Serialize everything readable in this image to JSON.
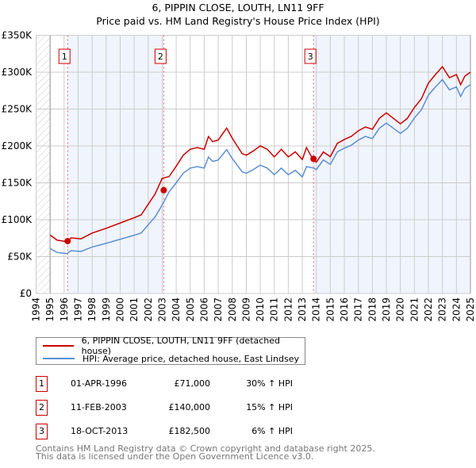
{
  "chart_data": {
    "type": "line",
    "title": "6, PIPPIN CLOSE, LOUTH, LN11 9FF",
    "subtitle": "Price paid vs. HM Land Registry's House Price Index (HPI)",
    "xlim": [
      1994,
      2025
    ],
    "ylim": [
      0,
      350000
    ],
    "y_ticks": [
      0,
      50000,
      100000,
      150000,
      200000,
      250000,
      300000,
      350000
    ],
    "y_tick_labels": [
      "£0",
      "£50K",
      "£100K",
      "£150K",
      "£200K",
      "£250K",
      "£300K",
      "£350K"
    ],
    "x_tick_labels": [
      "1994",
      "1995",
      "1996",
      "1997",
      "1998",
      "1999",
      "2000",
      "2001",
      "2002",
      "2003",
      "2004",
      "2005",
      "2006",
      "2007",
      "2008",
      "2009",
      "2010",
      "2011",
      "2012",
      "2013",
      "2014",
      "2015",
      "2016",
      "2017",
      "2018",
      "2019",
      "2020",
      "2021",
      "2022",
      "2023",
      "2024",
      "2025"
    ],
    "grid": true,
    "hpi_series": {
      "name": "HPI: Average price, detached house, East Lindsey",
      "color": "#5b8fd4",
      "points": [
        [
          1995,
          61000
        ],
        [
          1995.5,
          55600
        ],
        [
          1996.2,
          54000
        ],
        [
          1996.5,
          58000
        ],
        [
          1997.2,
          57000
        ],
        [
          1998,
          63000
        ],
        [
          1999,
          68000
        ],
        [
          2000,
          73500
        ],
        [
          2001,
          79000
        ],
        [
          2001.5,
          82000
        ],
        [
          2002,
          93000
        ],
        [
          2002.5,
          104000
        ],
        [
          2003,
          120000
        ],
        [
          2003.5,
          138000
        ],
        [
          2004,
          150000
        ],
        [
          2004.5,
          163000
        ],
        [
          2005,
          170000
        ],
        [
          2005.5,
          172000
        ],
        [
          2006,
          170000
        ],
        [
          2006.3,
          185000
        ],
        [
          2006.6,
          179000
        ],
        [
          2007,
          181000
        ],
        [
          2007.6,
          195000
        ],
        [
          2008,
          183000
        ],
        [
          2008.7,
          165000
        ],
        [
          2009,
          163000
        ],
        [
          2009.5,
          168000
        ],
        [
          2010,
          174000
        ],
        [
          2010.5,
          170000
        ],
        [
          2011,
          161000
        ],
        [
          2011.5,
          170000
        ],
        [
          2012,
          161000
        ],
        [
          2012.5,
          167000
        ],
        [
          2013,
          158000
        ],
        [
          2013.3,
          172000
        ],
        [
          2013.8,
          170000
        ],
        [
          2014,
          168000
        ],
        [
          2014.5,
          181000
        ],
        [
          2015,
          175000
        ],
        [
          2015.5,
          192000
        ],
        [
          2016,
          197000
        ],
        [
          2016.5,
          201000
        ],
        [
          2017,
          208000
        ],
        [
          2017.5,
          213000
        ],
        [
          2018,
          210000
        ],
        [
          2018.5,
          224000
        ],
        [
          2019,
          231000
        ],
        [
          2019.5,
          224000
        ],
        [
          2020,
          217000
        ],
        [
          2020.5,
          224000
        ],
        [
          2021,
          238000
        ],
        [
          2021.5,
          249000
        ],
        [
          2022,
          269000
        ],
        [
          2022.5,
          280000
        ],
        [
          2023,
          290000
        ],
        [
          2023.5,
          276000
        ],
        [
          2024,
          280000
        ],
        [
          2024.3,
          267000
        ],
        [
          2024.6,
          278000
        ],
        [
          2025,
          283000
        ]
      ]
    },
    "property_series": {
      "name": "6, PIPPIN CLOSE, LOUTH, LN11 9FF (detached house)",
      "color": "#cc0000"
    },
    "sales": [
      {
        "n": "1",
        "x": 1996.25,
        "date": "01-APR-1996",
        "price": 71000,
        "price_label": "£71,000",
        "pct": 30,
        "pct_label": "30% ↑ HPI"
      },
      {
        "n": "2",
        "x": 2003.11,
        "date": "11-FEB-2003",
        "price": 140000,
        "price_label": "£140,000",
        "pct": 15,
        "pct_label": "15% ↑ HPI"
      },
      {
        "n": "3",
        "x": 2013.8,
        "date": "18-OCT-2013",
        "price": 182500,
        "price_label": "£182,500",
        "pct": 6,
        "pct_label": "6% ↑ HPI"
      }
    ],
    "legend_placement": "bottom"
  },
  "footer": {
    "line1": "Contains HM Land Registry data © Crown copyright and database right 2025.",
    "line2": "This data is licensed under the Open Government Licence v3.0."
  }
}
